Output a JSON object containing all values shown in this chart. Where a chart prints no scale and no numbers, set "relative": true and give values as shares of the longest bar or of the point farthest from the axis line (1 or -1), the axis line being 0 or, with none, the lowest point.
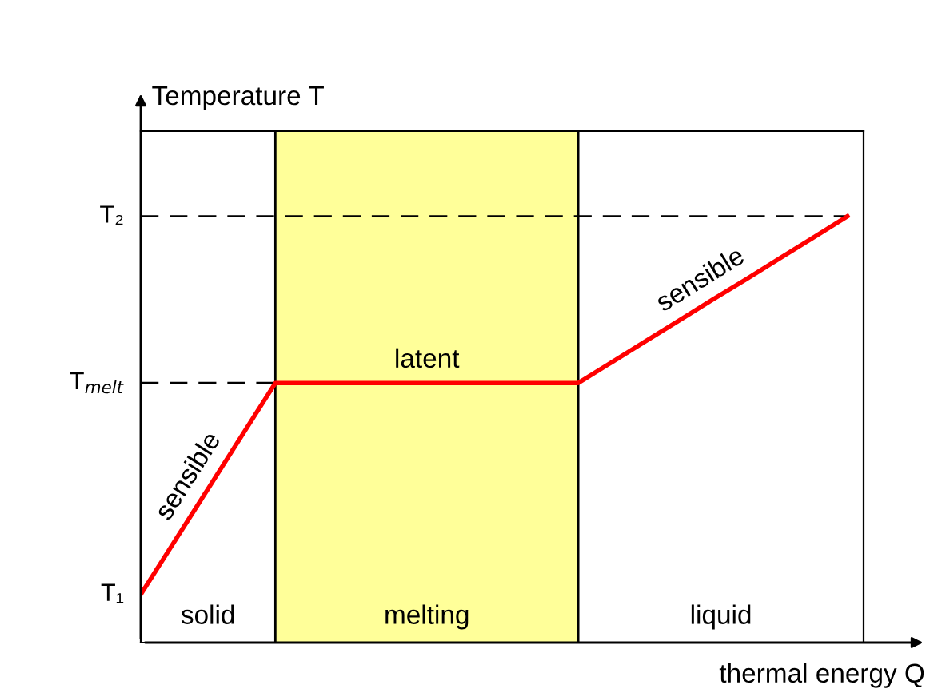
{
  "chart_data": {
    "type": "line",
    "xlabel": "thermal energy Q",
    "ylabel": "Temperature T",
    "categories": [
      null,
      null,
      null,
      null,
      null,
      null,
      null,
      null,
      null,
      null,
      null,
      null,
      null,
      null,
      null,
      null,
      null,
      null,
      null,
      null,
      null,
      null
    ],
    "series": [
      {
        "color": "#ff0000",
        "values": [
          0.113,
          0.237,
          0.361,
          0.485,
          0.609,
          0.609,
          0.609,
          0.609,
          0.609,
          0.609,
          0.609,
          0.609,
          0.609,
          0.609,
          0.658,
          0.707,
          0.756,
          0.805,
          0.853,
          0.902,
          0.951,
          1.0
        ]
      }
    ],
    "relative": true,
    "ref_lines": [
      {
        "axis": "y",
        "value": 0.609,
        "label": "T$_{melt}$",
        "line_style": "dashed",
        "color": "#000000"
      },
      {
        "axis": "y",
        "value": 1.0,
        "label": "T₂",
        "line_style": "dashed",
        "color": "#000000"
      }
    ],
    "annotations": [
      "sensible",
      "latent",
      "sensible",
      "solid",
      "melting",
      "liquid",
      "T₁"
    ],
    "line_style": "solid"
  }
}
